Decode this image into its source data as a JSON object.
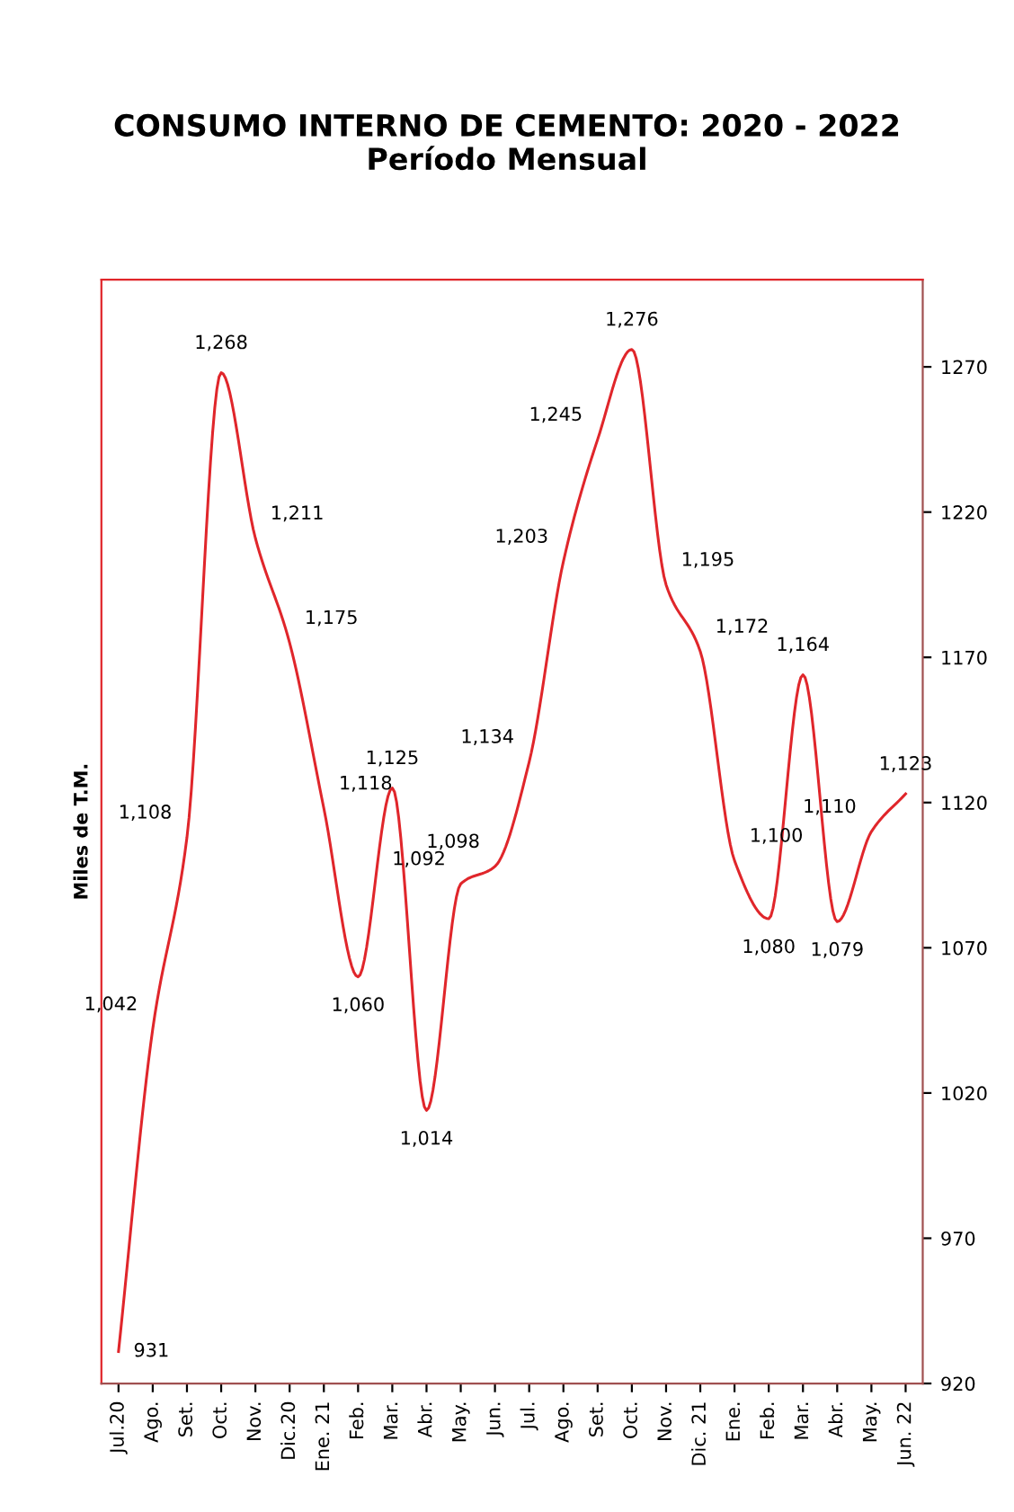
{
  "chart_data": {
    "type": "line",
    "title": "CONSUMO INTERNO DE CEMENTO: 2020 - 2022\nPeríodo Mensual",
    "ylabel": "Miles de T.M.",
    "categories": [
      "Jul.20",
      "Ago.",
      "Set.",
      "Oct.",
      "Nov.",
      "Dic.20",
      "Ene. 21",
      "Feb.",
      "Mar.",
      "Abr.",
      "May.",
      "Jun.",
      "Jul.",
      "Ago.",
      "Set.",
      "Oct.",
      "Nov.",
      "Dic. 21",
      "Ene.",
      "Feb.",
      "Mar.",
      "Abr.",
      "May.",
      "Jun. 22"
    ],
    "series": [
      {
        "color": "#e0262b",
        "values": [
          931,
          1042,
          1108,
          1268,
          1211,
          1175,
          1118,
          1060,
          1125,
          1014,
          1092,
          1098,
          1134,
          1203,
          1245,
          1276,
          1195,
          1172,
          1100,
          1080,
          1164,
          1079,
          1110,
          1123
        ],
        "value_labels": [
          "931",
          "1,042",
          "1,108",
          "1,268",
          "1,211",
          "1,175",
          "1,118",
          "1,060",
          "1,125",
          "1,014",
          "1,092",
          "1,098",
          "1,134",
          "1,203",
          "1,245",
          "1,276",
          "1,195",
          "1,172",
          "1,100",
          "1,080",
          "1,164",
          "1,079",
          "1,110",
          "1,123"
        ]
      }
    ],
    "ylim": [
      920,
      1300
    ],
    "yticks": [
      920,
      970,
      1020,
      1070,
      1120,
      1170,
      1220,
      1270
    ],
    "grid": false,
    "marker": "none",
    "line_style": "solid"
  }
}
